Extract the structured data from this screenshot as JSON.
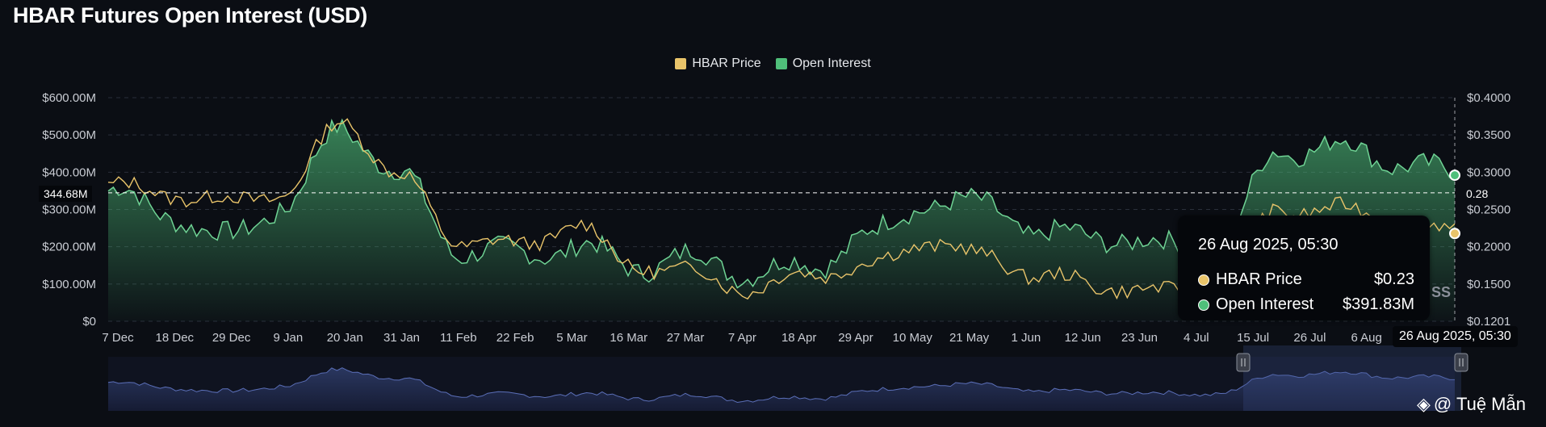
{
  "title": "HBAR Futures Open Interest (USD)",
  "chart_data": {
    "type": "area",
    "title": "HBAR Futures Open Interest (USD)",
    "legend": [
      {
        "name": "HBAR Price",
        "color": "#e9c46a"
      },
      {
        "name": "Open Interest",
        "color": "#4fbf7a"
      }
    ],
    "legend_position": "top-center",
    "x_tick_labels": [
      "7 Dec",
      "18 Dec",
      "29 Dec",
      "9 Jan",
      "20 Jan",
      "31 Jan",
      "11 Feb",
      "22 Feb",
      "5 Mar",
      "16 Mar",
      "27 Mar",
      "7 Apr",
      "18 Apr",
      "29 Apr",
      "10 May",
      "21 May",
      "1 Jun",
      "12 Jun",
      "23 Jun",
      "4 Jul",
      "15 Jul",
      "26 Jul",
      "6 Aug"
    ],
    "y_left_ticks": [
      "$600.00M",
      "$500.00M",
      "$400.00M",
      "$300.00M",
      "$200.00M",
      "$100.00M",
      "$0"
    ],
    "y_right_ticks": [
      "$0.4000",
      "$0.3500",
      "$0.3000",
      "$0.2500",
      "$0.2000",
      "$0.1500",
      "$0.1201"
    ],
    "y_left_range": [
      0,
      600000000
    ],
    "y_right_range": [
      0.1201,
      0.4
    ],
    "grid": true,
    "series": [
      {
        "name": "Open Interest",
        "unit": "USD",
        "axis": "left",
        "x": [
          "7 Dec",
          "18 Dec",
          "29 Dec",
          "9 Jan",
          "20 Jan",
          "31 Jan",
          "11 Feb",
          "22 Feb",
          "5 Mar",
          "16 Mar",
          "27 Mar",
          "7 Apr",
          "18 Apr",
          "29 Apr",
          "10 May",
          "21 May",
          "1 Jun",
          "12 Jun",
          "23 Jun",
          "4 Jul",
          "15 Jul",
          "26 Jul",
          "6 Aug",
          "26 Aug"
        ],
        "values": [
          350000000,
          290000000,
          220000000,
          310000000,
          520000000,
          390000000,
          190000000,
          180000000,
          200000000,
          150000000,
          170000000,
          130000000,
          150000000,
          230000000,
          320000000,
          310000000,
          230000000,
          230000000,
          200000000,
          210000000,
          460000000,
          470000000,
          430000000,
          391830000
        ]
      },
      {
        "name": "HBAR Price",
        "unit": "USD",
        "axis": "right",
        "x": [
          "7 Dec",
          "18 Dec",
          "29 Dec",
          "9 Jan",
          "20 Jan",
          "31 Jan",
          "11 Feb",
          "22 Feb",
          "5 Mar",
          "16 Mar",
          "27 Mar",
          "7 Apr",
          "18 Apr",
          "29 Apr",
          "10 May",
          "21 May",
          "1 Jun",
          "12 Jun",
          "23 Jun",
          "4 Jul",
          "15 Jul",
          "26 Jul",
          "6 Aug",
          "26 Aug"
        ],
        "values": [
          0.29,
          0.28,
          0.27,
          0.28,
          0.37,
          0.3,
          0.22,
          0.215,
          0.24,
          0.19,
          0.18,
          0.16,
          0.18,
          0.19,
          0.22,
          0.2,
          0.175,
          0.165,
          0.155,
          0.17,
          0.26,
          0.26,
          0.25,
          0.23
        ]
      }
    ],
    "crosshair": {
      "left_label": "344.68M",
      "right_label": "0.28",
      "x_label": "26 Aug 2025, 05:30"
    },
    "tooltip": {
      "date": "26 Aug 2025, 05:30",
      "rows": [
        {
          "name": "HBAR Price",
          "value": "$0.23",
          "color": "#e9c46a"
        },
        {
          "name": "Open Interest",
          "value": "$391.83M",
          "color": "#4fbf7a"
        }
      ]
    }
  },
  "watermark": "@ Tuệ Mẫn",
  "tooltip_occluded_text": "SS"
}
